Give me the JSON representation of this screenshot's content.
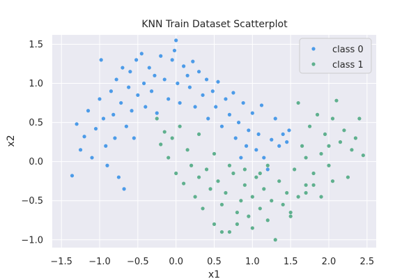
{
  "chart_data": {
    "type": "scatter",
    "title": "KNN Train Dataset Scatterplot",
    "xlabel": "x1",
    "ylabel": "x2",
    "xlim": [
      -1.62,
      2.62
    ],
    "ylim": [
      -1.1,
      1.62
    ],
    "xticks": [
      "−1.5",
      "−1.0",
      "−0.5",
      "0.0",
      "0.5",
      "1.0",
      "1.5",
      "2.0",
      "2.5"
    ],
    "xtick_values": [
      -1.5,
      -1.0,
      -0.5,
      0.0,
      0.5,
      1.0,
      1.5,
      2.0,
      2.5
    ],
    "yticks": [
      "1.5",
      "1.0",
      "0.5",
      "0.0",
      "−0.5",
      "−1.0"
    ],
    "ytick_values": [
      1.5,
      1.0,
      0.5,
      0.0,
      -0.5,
      -1.0
    ],
    "grid": true,
    "background": "#eaeaf2",
    "legend_position": "top-right",
    "series": [
      {
        "name": "class 0",
        "color": "#4c9be8",
        "points": [
          [
            -1.36,
            -0.18
          ],
          [
            -1.3,
            0.48
          ],
          [
            -1.25,
            0.15
          ],
          [
            -1.2,
            0.32
          ],
          [
            -1.15,
            0.65
          ],
          [
            -1.1,
            0.05
          ],
          [
            -1.05,
            0.42
          ],
          [
            -1.0,
            0.8
          ],
          [
            -0.98,
            1.3
          ],
          [
            -0.95,
            0.55
          ],
          [
            -0.92,
            0.2
          ],
          [
            -0.9,
            -0.05
          ],
          [
            -0.85,
            0.9
          ],
          [
            -0.82,
            0.6
          ],
          [
            -0.8,
            0.3
          ],
          [
            -0.78,
            1.05
          ],
          [
            -0.75,
            -0.2
          ],
          [
            -0.72,
            0.75
          ],
          [
            -0.7,
            1.2
          ],
          [
            -0.68,
            -0.35
          ],
          [
            -0.65,
            0.45
          ],
          [
            -0.62,
            0.95
          ],
          [
            -0.6,
            1.15
          ],
          [
            -0.58,
            0.65
          ],
          [
            -0.55,
            0.3
          ],
          [
            -0.52,
            1.3
          ],
          [
            -0.5,
            0.85
          ],
          [
            -0.45,
            1.38
          ],
          [
            -0.42,
            1.0
          ],
          [
            -0.4,
            0.7
          ],
          [
            -0.35,
            1.2
          ],
          [
            -0.32,
            0.9
          ],
          [
            -0.28,
            1.1
          ],
          [
            -0.25,
            0.62
          ],
          [
            -0.2,
            1.35
          ],
          [
            -0.15,
            1.05
          ],
          [
            -0.1,
            0.8
          ],
          [
            -0.05,
            1.3
          ],
          [
            -0.02,
            1.42
          ],
          [
            0.0,
            1.55
          ],
          [
            0.02,
            1.0
          ],
          [
            0.05,
            0.75
          ],
          [
            0.1,
            1.22
          ],
          [
            0.15,
            1.1
          ],
          [
            0.18,
            0.95
          ],
          [
            0.22,
            1.28
          ],
          [
            0.25,
            0.7
          ],
          [
            0.3,
            1.15
          ],
          [
            0.35,
            0.85
          ],
          [
            0.4,
            1.05
          ],
          [
            0.42,
            0.55
          ],
          [
            0.48,
            0.9
          ],
          [
            0.52,
            0.7
          ],
          [
            0.55,
            1.02
          ],
          [
            0.6,
            0.45
          ],
          [
            0.65,
            0.8
          ],
          [
            0.7,
            0.6
          ],
          [
            0.75,
            0.88
          ],
          [
            0.78,
            0.3
          ],
          [
            0.82,
            0.5
          ],
          [
            0.85,
            0.05
          ],
          [
            0.88,
            0.75
          ],
          [
            0.92,
            0.2
          ],
          [
            0.95,
            0.4
          ],
          [
            1.0,
            0.62
          ],
          [
            1.05,
            0.15
          ],
          [
            1.08,
            0.35
          ],
          [
            1.12,
            0.72
          ],
          [
            1.15,
            0.05
          ],
          [
            1.2,
            -0.1
          ],
          [
            1.25,
            0.28
          ],
          [
            1.3,
            0.55
          ],
          [
            1.35,
            0.2
          ],
          [
            1.4,
            0.35
          ],
          [
            1.45,
            0.25
          ],
          [
            1.48,
            0.4
          ]
        ]
      },
      {
        "name": "class 1",
        "color": "#5fb08e",
        "points": [
          [
            -0.25,
            0.55
          ],
          [
            -0.2,
            0.22
          ],
          [
            -0.15,
            0.38
          ],
          [
            -0.1,
            0.05
          ],
          [
            -0.05,
            0.3
          ],
          [
            0.0,
            -0.15
          ],
          [
            0.05,
            0.45
          ],
          [
            0.1,
            -0.28
          ],
          [
            0.15,
            0.15
          ],
          [
            0.2,
            -0.05
          ],
          [
            0.25,
            -0.45
          ],
          [
            0.3,
            -0.2
          ],
          [
            0.35,
            -0.6
          ],
          [
            0.4,
            -0.1
          ],
          [
            0.45,
            -0.35
          ],
          [
            0.5,
            -0.8
          ],
          [
            0.55,
            -0.25
          ],
          [
            0.6,
            -0.55
          ],
          [
            0.65,
            -0.4
          ],
          [
            0.7,
            -0.9
          ],
          [
            0.75,
            -0.15
          ],
          [
            0.8,
            -0.65
          ],
          [
            0.85,
            -0.5
          ],
          [
            0.9,
            -0.3
          ],
          [
            0.95,
            -0.7
          ],
          [
            1.0,
            -0.45
          ],
          [
            1.05,
            -0.2
          ],
          [
            1.1,
            -0.6
          ],
          [
            1.15,
            -0.35
          ],
          [
            1.2,
            -0.75
          ],
          [
            1.25,
            -0.5
          ],
          [
            1.3,
            -1.0
          ],
          [
            1.35,
            -0.25
          ],
          [
            1.4,
            -0.55
          ],
          [
            1.45,
            -0.4
          ],
          [
            1.5,
            -0.65
          ],
          [
            1.55,
            -0.1
          ],
          [
            1.6,
            -0.45
          ],
          [
            1.65,
            0.2
          ],
          [
            1.7,
            -0.3
          ],
          [
            1.75,
            0.45
          ],
          [
            1.8,
            -0.15
          ],
          [
            1.85,
            0.6
          ],
          [
            1.9,
            0.1
          ],
          [
            1.95,
            0.35
          ],
          [
            2.0,
            -0.05
          ],
          [
            2.05,
            0.55
          ],
          [
            2.1,
            0.78
          ],
          [
            2.15,
            0.25
          ],
          [
            2.2,
            0.4
          ],
          [
            2.25,
            -0.2
          ],
          [
            2.3,
            0.15
          ],
          [
            2.35,
            0.3
          ],
          [
            2.4,
            0.55
          ],
          [
            2.45,
            0.08
          ],
          [
            1.6,
            0.75
          ],
          [
            1.7,
            0.05
          ],
          [
            1.8,
            -0.3
          ],
          [
            1.9,
            -0.45
          ],
          [
            2.0,
            0.2
          ],
          [
            0.3,
            0.35
          ],
          [
            0.5,
            0.1
          ],
          [
            0.7,
            -0.05
          ],
          [
            0.9,
            -0.1
          ],
          [
            1.1,
            -0.15
          ],
          [
            1.2,
            -0.05
          ],
          [
            0.6,
            -0.9
          ],
          [
            0.8,
            -0.8
          ],
          [
            1.0,
            -0.85
          ],
          [
            1.5,
            -0.7
          ],
          [
            1.7,
            -0.4
          ],
          [
            2.05,
            -0.25
          ]
        ]
      }
    ]
  }
}
